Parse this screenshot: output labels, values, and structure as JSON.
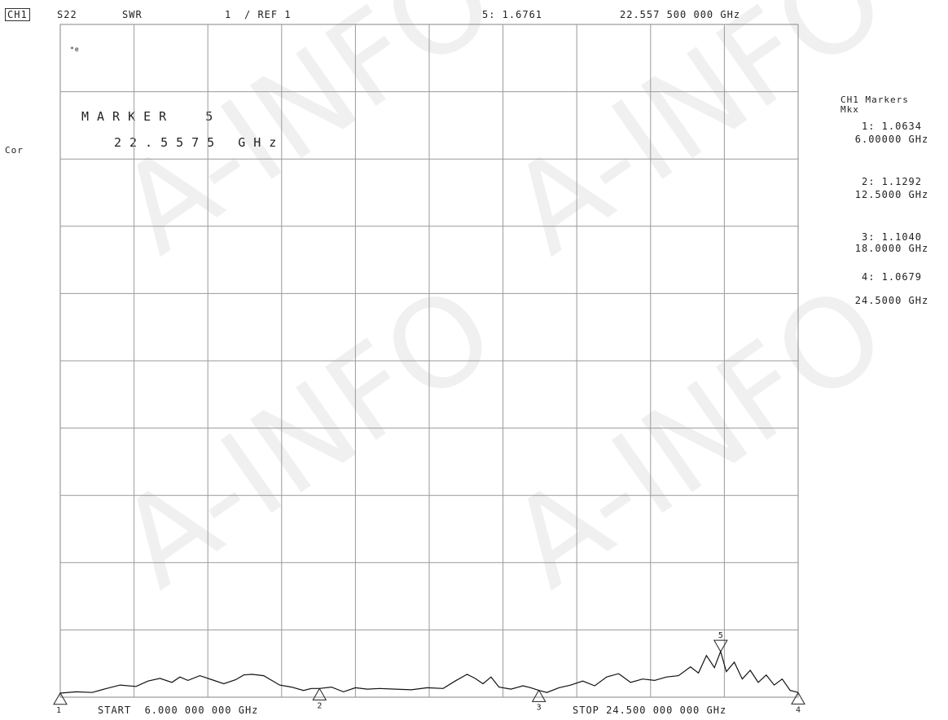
{
  "header": {
    "channel": "CH1",
    "parameter": "S22",
    "format": "SWR",
    "scale": "1",
    "ref": "/ REF 1",
    "active_marker_readout": "5: 1.6761",
    "active_marker_freq": "22.557 500 000 GHz"
  },
  "left_annotation": {
    "cor": "Cor",
    "small_mark": "*e"
  },
  "marker_box": {
    "line1": "MARKER  5",
    "line2": "22.5575 GHz"
  },
  "marker_list": {
    "title": "CH1 Markers",
    "subtitle": "Mkx",
    "items": [
      {
        "value": "1: 1.0634",
        "freq": "6.00000 GHz"
      },
      {
        "value": "2: 1.1292",
        "freq": "12.5000 GHz"
      },
      {
        "value": "3: 1.1040",
        "freq": "18.0000 GHz"
      },
      {
        "value": "4: 1.0679",
        "freq": "24.5000 GHz"
      }
    ]
  },
  "footer": {
    "start": "START  6.000 000 000 GHz",
    "stop": "STOP 24.500 000 000 GHz"
  },
  "marker_labels": [
    "1",
    "2",
    "3",
    "4",
    "5"
  ],
  "watermark": "A-INFO",
  "colors": {
    "grid": "#9a9a9a",
    "trace": "#111111",
    "background": "#ffffff"
  },
  "chart_data": {
    "type": "line",
    "x_unit": "GHz",
    "xlim": [
      6.0,
      24.5
    ],
    "ylim": [
      1.0,
      11.0
    ],
    "grid": true,
    "grid_divisions": {
      "x": 10,
      "y": 10
    },
    "series": [
      {
        "x": [
          6.0,
          6.4,
          6.8,
          7.1,
          7.5,
          7.9,
          8.2,
          8.5,
          8.8,
          9.0,
          9.2,
          9.5,
          9.8,
          10.1,
          10.4,
          10.6,
          10.8,
          11.1,
          11.5,
          11.8,
          12.1,
          12.3,
          12.5,
          12.8,
          13.1,
          13.4,
          13.7,
          14.0,
          14.4,
          14.8,
          15.2,
          15.6,
          15.9,
          16.2,
          16.4,
          16.6,
          16.8,
          17.0,
          17.3,
          17.6,
          17.8,
          18.0,
          18.2,
          18.5,
          18.8,
          19.1,
          19.4,
          19.7,
          20.0,
          20.3,
          20.6,
          20.9,
          21.2,
          21.5,
          21.8,
          22.0,
          22.2,
          22.4,
          22.557,
          22.7,
          22.9,
          23.1,
          23.3,
          23.5,
          23.7,
          23.9,
          24.1,
          24.3,
          24.5
        ],
        "y": [
          1.06,
          1.08,
          1.07,
          1.12,
          1.18,
          1.16,
          1.24,
          1.28,
          1.22,
          1.3,
          1.25,
          1.32,
          1.26,
          1.2,
          1.26,
          1.33,
          1.34,
          1.32,
          1.18,
          1.15,
          1.1,
          1.13,
          1.13,
          1.15,
          1.08,
          1.14,
          1.12,
          1.13,
          1.12,
          1.11,
          1.14,
          1.13,
          1.24,
          1.34,
          1.28,
          1.2,
          1.3,
          1.15,
          1.12,
          1.17,
          1.14,
          1.1,
          1.07,
          1.14,
          1.18,
          1.24,
          1.17,
          1.3,
          1.35,
          1.22,
          1.27,
          1.25,
          1.3,
          1.32,
          1.45,
          1.36,
          1.62,
          1.44,
          1.68,
          1.38,
          1.52,
          1.27,
          1.4,
          1.22,
          1.33,
          1.18,
          1.27,
          1.1,
          1.07
        ]
      }
    ],
    "markers": [
      {
        "label": "1",
        "x": 6.0,
        "y": 1.0634
      },
      {
        "label": "2",
        "x": 12.5,
        "y": 1.1292
      },
      {
        "label": "3",
        "x": 18.0,
        "y": 1.104
      },
      {
        "label": "4",
        "x": 24.5,
        "y": 1.0679
      },
      {
        "label": "5",
        "x": 22.5575,
        "y": 1.6761
      }
    ]
  }
}
